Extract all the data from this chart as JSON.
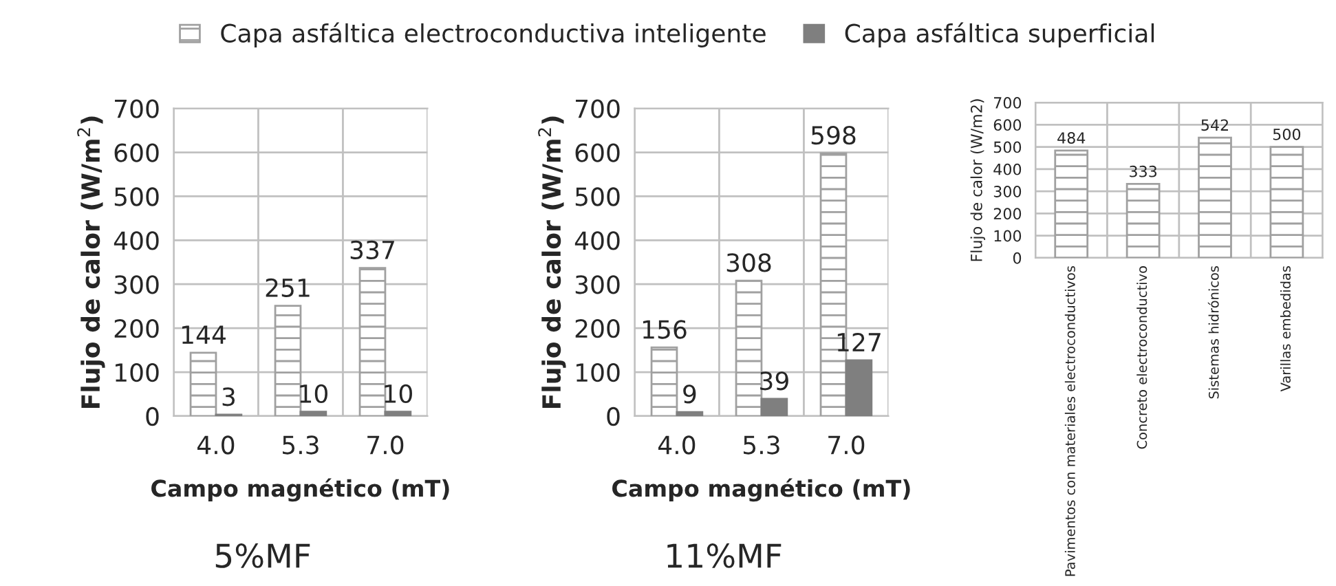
{
  "chart_data": [
    {
      "type": "bar",
      "categories": [
        "4.0",
        "5.3",
        "7.0"
      ],
      "xlabel": "Campo magnético (mT)",
      "ylabel": "Flujo de calor (W/m$^{2}$)",
      "ylim": [
        0,
        700
      ],
      "yticks": [
        0,
        100,
        200,
        300,
        400,
        500,
        600,
        700
      ],
      "grid": true,
      "legend": "top",
      "data_labels": true,
      "annotations": [
        "5%MF"
      ],
      "series": [
        {
          "name": "Capa asfáltica electroconductiva inteligente",
          "color": "#a0a0a0",
          "values": [
            144,
            251,
            337
          ]
        },
        {
          "name": "Capa asfáltica superficial",
          "color": "#7f7f7f",
          "values": [
            3,
            10,
            10
          ]
        }
      ]
    },
    {
      "type": "bar",
      "categories": [
        "4.0",
        "5.3",
        "7.0"
      ],
      "xlabel": "Campo magnético (mT)",
      "ylabel": "Flujo de calor (W/m$^{2}$)",
      "ylim": [
        0,
        700
      ],
      "yticks": [
        0,
        100,
        200,
        300,
        400,
        500,
        600,
        700
      ],
      "grid": true,
      "data_labels": true,
      "annotations": [
        "11%MF"
      ],
      "series": [
        {
          "color": "#a0a0a0",
          "values": [
            156,
            308,
            598
          ]
        },
        {
          "color": "#7f7f7f",
          "values": [
            9,
            39,
            127
          ]
        }
      ]
    },
    {
      "type": "bar",
      "categories": [
        "Pavimentos con materiales electroconductivos",
        "Concreto electroconductivo",
        "Sistemas hidrónicos",
        "Varillas embedidas"
      ],
      "ylabel": "Flujo de calor (W/m2)",
      "ylim": [
        0,
        700
      ],
      "yticks": [
        0,
        100,
        200,
        300,
        400,
        500,
        600,
        700
      ],
      "grid": true,
      "data_labels": true,
      "series": [
        {
          "color": "#a0a0a0",
          "values": [
            484,
            333,
            542,
            500
          ]
        }
      ]
    }
  ]
}
